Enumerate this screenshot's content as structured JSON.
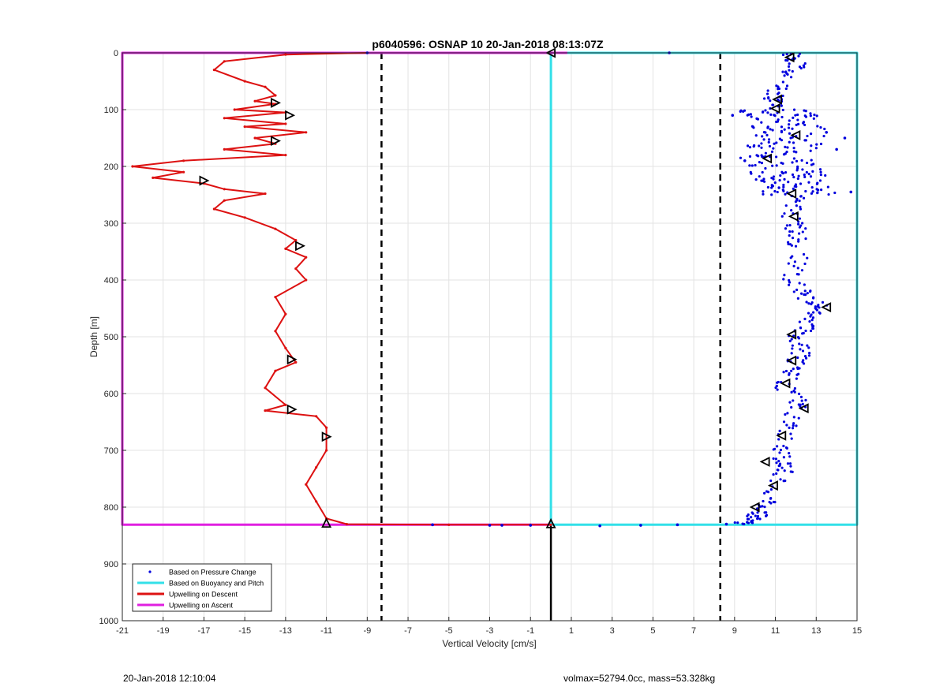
{
  "chart_data": {
    "type": "line",
    "title": "p6040596: OSNAP 10 20-Jan-2018 08:13:07Z",
    "xlabel": "Vertical Velocity [cm/s]",
    "ylabel": "Depth [m]",
    "xlim": [
      -21,
      15
    ],
    "ylim": [
      1000,
      0
    ],
    "y_reversed": true,
    "grid": true,
    "legend_position": "bottom-left",
    "x_ticks": [
      -21,
      -19,
      -17,
      -15,
      -13,
      -11,
      -9,
      -7,
      -5,
      -3,
      -1,
      1,
      3,
      5,
      7,
      9,
      11,
      13,
      15
    ],
    "y_ticks": [
      0,
      100,
      200,
      300,
      400,
      500,
      600,
      700,
      800,
      900,
      1000
    ],
    "legend": [
      {
        "label": "Based on Pressure Change",
        "style": "dots",
        "color": "#0000dd"
      },
      {
        "label": "Based on Buoyancy and Pitch",
        "style": "line",
        "color": "#33e0e8"
      },
      {
        "label": "Upwelling on Descent",
        "style": "line",
        "color": "#dd1111"
      },
      {
        "label": "Upwelling on Ascent",
        "style": "line",
        "color": "#e020e0"
      }
    ],
    "reference_lines": {
      "dashed_x": [
        -8.3,
        8.3
      ],
      "zero_line_x": 0,
      "surface_depth": 0,
      "bottom_depth": 830
    },
    "series": [
      {
        "name": "Upwelling on Descent",
        "color": "#dd1111",
        "points": [
          [
            -9,
            0
          ],
          [
            -13,
            3
          ],
          [
            -16,
            15
          ],
          [
            -16.5,
            30
          ],
          [
            -15,
            50
          ],
          [
            -14,
            60
          ],
          [
            -13.5,
            75
          ],
          [
            -14.5,
            85
          ],
          [
            -13.5,
            90
          ],
          [
            -15.5,
            100
          ],
          [
            -13,
            105
          ],
          [
            -16,
            115
          ],
          [
            -13,
            125
          ],
          [
            -15,
            130
          ],
          [
            -12,
            140
          ],
          [
            -14.5,
            150
          ],
          [
            -13.5,
            160
          ],
          [
            -16,
            170
          ],
          [
            -13,
            180
          ],
          [
            -18,
            190
          ],
          [
            -20.5,
            200
          ],
          [
            -18,
            210
          ],
          [
            -19.5,
            220
          ],
          [
            -17,
            230
          ],
          [
            -16,
            240
          ],
          [
            -14,
            248
          ],
          [
            -16,
            260
          ],
          [
            -16.5,
            275
          ],
          [
            -15,
            290
          ],
          [
            -13.5,
            310
          ],
          [
            -12.5,
            330
          ],
          [
            -13,
            345
          ],
          [
            -12,
            360
          ],
          [
            -12.5,
            380
          ],
          [
            -12,
            400
          ],
          [
            -13.5,
            430
          ],
          [
            -13,
            460
          ],
          [
            -13.5,
            490
          ],
          [
            -13,
            520
          ],
          [
            -12.5,
            545
          ],
          [
            -13.5,
            560
          ],
          [
            -14,
            590
          ],
          [
            -13,
            620
          ],
          [
            -14,
            630
          ],
          [
            -11.5,
            640
          ],
          [
            -11,
            660
          ],
          [
            -11,
            700
          ],
          [
            -11.5,
            730
          ],
          [
            -12,
            760
          ],
          [
            -11.5,
            790
          ],
          [
            -11,
            820
          ],
          [
            -10,
            830
          ],
          [
            -5,
            831
          ],
          [
            -1,
            831
          ],
          [
            0,
            831
          ]
        ]
      },
      {
        "name": "Upwelling on Ascent",
        "color": "#e020e0",
        "points": [
          [
            0,
            831
          ],
          [
            -12,
            831
          ],
          [
            -21,
            831
          ],
          [
            -21,
            0
          ],
          [
            0,
            0
          ],
          [
            0.8,
            0
          ]
        ]
      },
      {
        "name": "Based on Buoyancy and Pitch",
        "color": "#33e0e8",
        "points": [
          [
            0,
            0
          ],
          [
            0,
            831
          ],
          [
            15,
            831
          ],
          [
            15,
            0
          ],
          [
            0,
            0
          ]
        ]
      }
    ],
    "pressure_change_points_approx": {
      "name": "Based on Pressure Change",
      "color": "#0000dd",
      "profile": [
        [
          11.8,
          0
        ],
        [
          12,
          20
        ],
        [
          11.5,
          50
        ],
        [
          10.8,
          80
        ],
        [
          11,
          100
        ],
        [
          11.5,
          120
        ],
        [
          11.8,
          150
        ],
        [
          11,
          180
        ],
        [
          11.5,
          210
        ],
        [
          12,
          230
        ],
        [
          12.2,
          250
        ],
        [
          11.7,
          280
        ],
        [
          12,
          310
        ],
        [
          12.2,
          350
        ],
        [
          11.8,
          400
        ],
        [
          12.5,
          430
        ],
        [
          13.3,
          450
        ],
        [
          12.5,
          480
        ],
        [
          12,
          500
        ],
        [
          12.3,
          530
        ],
        [
          11.7,
          560
        ],
        [
          11.5,
          590
        ],
        [
          12.3,
          620
        ],
        [
          11.5,
          660
        ],
        [
          11.3,
          700
        ],
        [
          11.5,
          730
        ],
        [
          11,
          770
        ],
        [
          10.5,
          800
        ],
        [
          10,
          820
        ],
        [
          9.3,
          830
        ]
      ],
      "deep_spread": [
        [
          8.9,
          110
        ],
        [
          13.5,
          140
        ],
        [
          14.4,
          150
        ],
        [
          14,
          170
        ],
        [
          14.7,
          245
        ],
        [
          9.5,
          190
        ]
      ],
      "bottom_points": [
        [
          -5.8,
          831
        ],
        [
          -3,
          832
        ],
        [
          -2.4,
          832
        ],
        [
          -1,
          832
        ],
        [
          2.4,
          833
        ],
        [
          4.4,
          832
        ],
        [
          6.2,
          831
        ],
        [
          8.6,
          830
        ]
      ],
      "surface_points": [
        [
          -9,
          0
        ],
        [
          5.8,
          0
        ]
      ]
    },
    "markers": [
      {
        "x": -13.5,
        "y": 88,
        "dir": "right"
      },
      {
        "x": -12.8,
        "y": 110,
        "dir": "right"
      },
      {
        "x": -13.5,
        "y": 155,
        "dir": "right"
      },
      {
        "x": -17,
        "y": 225,
        "dir": "right"
      },
      {
        "x": -12.3,
        "y": 340,
        "dir": "right"
      },
      {
        "x": -12.7,
        "y": 540,
        "dir": "right"
      },
      {
        "x": -12.7,
        "y": 628,
        "dir": "right"
      },
      {
        "x": -11,
        "y": 676,
        "dir": "right"
      },
      {
        "x": -11,
        "y": 828,
        "dir": "up"
      },
      {
        "x": 0,
        "y": 0,
        "dir": "left"
      },
      {
        "x": 0,
        "y": 829,
        "dir": "up"
      },
      {
        "x": 11.7,
        "y": 8,
        "dir": "left"
      },
      {
        "x": 11.1,
        "y": 82,
        "dir": "left"
      },
      {
        "x": 11,
        "y": 98,
        "dir": "left"
      },
      {
        "x": 12,
        "y": 145,
        "dir": "left"
      },
      {
        "x": 10.6,
        "y": 186,
        "dir": "left"
      },
      {
        "x": 11.8,
        "y": 248,
        "dir": "left"
      },
      {
        "x": 11.9,
        "y": 288,
        "dir": "left"
      },
      {
        "x": 13.5,
        "y": 448,
        "dir": "left"
      },
      {
        "x": 11.8,
        "y": 496,
        "dir": "left"
      },
      {
        "x": 11.8,
        "y": 542,
        "dir": "left"
      },
      {
        "x": 11.5,
        "y": 582,
        "dir": "left"
      },
      {
        "x": 12.4,
        "y": 626,
        "dir": "left"
      },
      {
        "x": 11.3,
        "y": 674,
        "dir": "left"
      },
      {
        "x": 10.5,
        "y": 720,
        "dir": "left"
      },
      {
        "x": 10.9,
        "y": 762,
        "dir": "left"
      },
      {
        "x": 10,
        "y": 800,
        "dir": "left"
      }
    ]
  },
  "footer": {
    "timestamp": "20-Jan-2018 12:10:04",
    "stats": "volmax=52794.0cc, mass=53.328kg"
  }
}
